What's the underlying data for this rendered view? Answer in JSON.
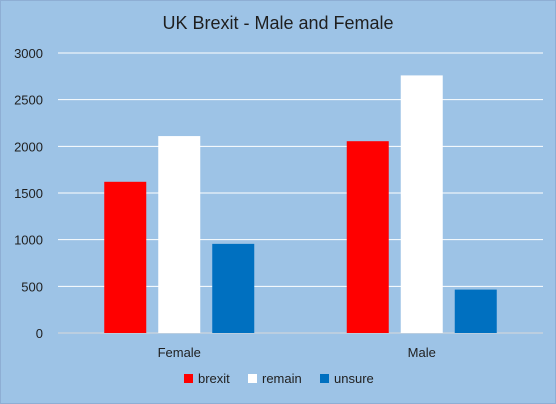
{
  "chart_data": {
    "type": "bar",
    "title": "UK Brexit - Male and Female",
    "categories": [
      "Female",
      "Male"
    ],
    "series": [
      {
        "name": "brexit",
        "values": [
          1620,
          2055
        ],
        "color": "#ff0000"
      },
      {
        "name": "remain",
        "values": [
          2110,
          2760
        ],
        "color": "#ffffff"
      },
      {
        "name": "unsure",
        "values": [
          955,
          465
        ],
        "color": "#0070c0"
      }
    ],
    "xlabel": "",
    "ylabel": "",
    "ylim": [
      0,
      3000
    ],
    "yticks": [
      0,
      500,
      1000,
      1500,
      2000,
      2500,
      3000
    ],
    "ytick_labels": [
      "0",
      "500",
      "1000",
      "1500",
      "2000",
      "2500",
      "3000"
    ],
    "grid": true,
    "legend": "bottom",
    "background_color": "#9dc3e6"
  }
}
